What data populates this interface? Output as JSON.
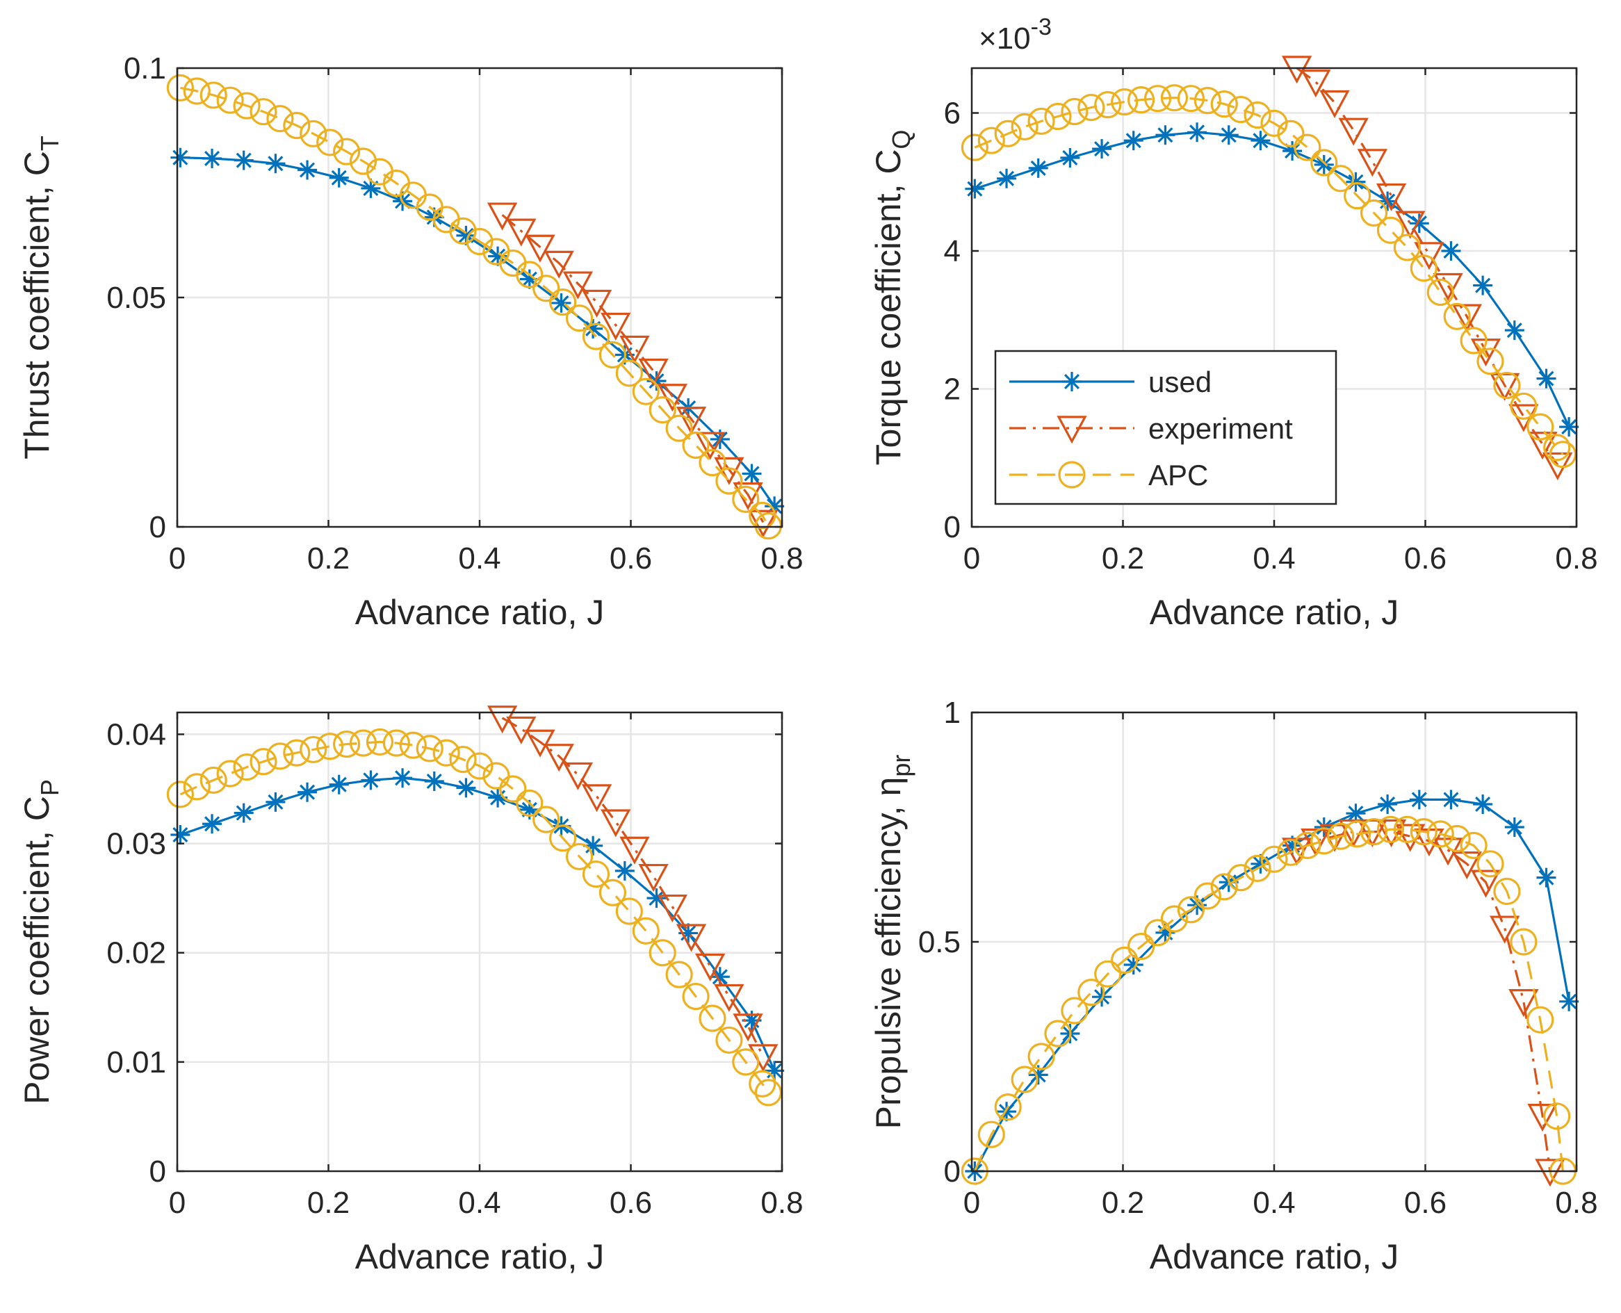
{
  "colors": {
    "used": "#0072BD",
    "experiment": "#D95319",
    "APC": "#EDB120",
    "grid": "#e6e6e6",
    "axis": "#262626"
  },
  "legend": [
    {
      "key": "used",
      "label": "used",
      "marker": "asterisk",
      "dash": "solid"
    },
    {
      "key": "experiment",
      "label": "experiment",
      "marker": "triangle-down",
      "dash": "dashdot"
    },
    {
      "key": "APC",
      "label": "APC",
      "marker": "circle",
      "dash": "dashed"
    }
  ],
  "chart_data": [
    {
      "type": "line",
      "id": "thrust",
      "xlabel": "Advance ratio, J",
      "ylabel": "Thrust coefficient, C",
      "ylabel_sub": "T",
      "xlim": [
        0,
        0.8
      ],
      "ylim": [
        0,
        0.1
      ],
      "xticks": [
        0,
        0.2,
        0.4,
        0.6,
        0.8
      ],
      "xtick_labels": [
        "0",
        "0.2",
        "0.4",
        "0.6",
        "0.8"
      ],
      "yticks": [
        0,
        0.05,
        0.1
      ],
      "ytick_labels": [
        "0",
        "0.05",
        "0.1"
      ],
      "grid": true,
      "series": [
        {
          "name": "used",
          "x": [
            0.004,
            0.046,
            0.088,
            0.13,
            0.172,
            0.214,
            0.256,
            0.298,
            0.34,
            0.382,
            0.424,
            0.466,
            0.508,
            0.55,
            0.592,
            0.634,
            0.676,
            0.718,
            0.76,
            0.79
          ],
          "y": [
            0.0805,
            0.0803,
            0.0799,
            0.0792,
            0.0778,
            0.0761,
            0.0738,
            0.071,
            0.0675,
            0.0635,
            0.059,
            0.054,
            0.0488,
            0.0432,
            0.0375,
            0.0318,
            0.0259,
            0.0191,
            0.0116,
            0.0045
          ]
        },
        {
          "name": "experiment",
          "x": [
            0.43,
            0.455,
            0.48,
            0.505,
            0.53,
            0.555,
            0.58,
            0.605,
            0.63,
            0.655,
            0.68,
            0.705,
            0.73,
            0.755,
            0.775
          ],
          "y": [
            0.068,
            0.0645,
            0.061,
            0.0575,
            0.053,
            0.049,
            0.044,
            0.039,
            0.034,
            0.0285,
            0.0235,
            0.018,
            0.0125,
            0.007,
            0.001
          ]
        },
        {
          "name": "APC",
          "x": [
            0.004,
            0.026,
            0.048,
            0.07,
            0.092,
            0.114,
            0.136,
            0.158,
            0.18,
            0.202,
            0.224,
            0.246,
            0.268,
            0.29,
            0.312,
            0.334,
            0.356,
            0.378,
            0.4,
            0.422,
            0.444,
            0.466,
            0.488,
            0.51,
            0.532,
            0.554,
            0.576,
            0.598,
            0.62,
            0.642,
            0.664,
            0.686,
            0.708,
            0.73,
            0.752,
            0.774,
            0.782
          ],
          "y": [
            0.0957,
            0.095,
            0.0941,
            0.093,
            0.0918,
            0.0905,
            0.089,
            0.0875,
            0.0857,
            0.0838,
            0.0818,
            0.0797,
            0.0774,
            0.0749,
            0.0723,
            0.0697,
            0.067,
            0.0645,
            0.0622,
            0.06,
            0.0575,
            0.055,
            0.052,
            0.049,
            0.0455,
            0.0415,
            0.0375,
            0.0335,
            0.0295,
            0.0255,
            0.0215,
            0.0178,
            0.014,
            0.01,
            0.006,
            0.0025,
            0.0002
          ]
        }
      ]
    },
    {
      "type": "line",
      "id": "torque",
      "xlabel": "Advance ratio, J",
      "ylabel": "Torque coefficient, C",
      "ylabel_sub": "Q",
      "exponent_base": "×10",
      "exponent_power": "-3",
      "xlim": [
        0,
        0.8
      ],
      "ylim": [
        0,
        6.65
      ],
      "xticks": [
        0,
        0.2,
        0.4,
        0.6,
        0.8
      ],
      "xtick_labels": [
        "0",
        "0.2",
        "0.4",
        "0.6",
        "0.8"
      ],
      "yticks": [
        0,
        2,
        4,
        6
      ],
      "ytick_labels": [
        "0",
        "2",
        "4",
        "6"
      ],
      "grid": true,
      "series": [
        {
          "name": "used",
          "x": [
            0.004,
            0.046,
            0.088,
            0.13,
            0.172,
            0.214,
            0.256,
            0.298,
            0.34,
            0.382,
            0.424,
            0.466,
            0.508,
            0.55,
            0.592,
            0.634,
            0.676,
            0.718,
            0.76,
            0.79
          ],
          "y": [
            4.9,
            5.05,
            5.2,
            5.35,
            5.48,
            5.6,
            5.68,
            5.72,
            5.68,
            5.6,
            5.45,
            5.25,
            5.0,
            4.72,
            4.4,
            4.0,
            3.5,
            2.85,
            2.15,
            1.45
          ]
        },
        {
          "name": "experiment",
          "x": [
            0.43,
            0.455,
            0.48,
            0.505,
            0.53,
            0.555,
            0.58,
            0.605,
            0.63,
            0.655,
            0.68,
            0.705,
            0.73,
            0.755,
            0.775
          ],
          "y": [
            6.65,
            6.45,
            6.15,
            5.75,
            5.3,
            4.8,
            4.4,
            3.95,
            3.5,
            3.05,
            2.55,
            2.05,
            1.6,
            1.2,
            0.9
          ]
        },
        {
          "name": "APC",
          "x": [
            0.004,
            0.026,
            0.048,
            0.07,
            0.092,
            0.114,
            0.136,
            0.158,
            0.18,
            0.202,
            0.224,
            0.246,
            0.268,
            0.29,
            0.312,
            0.334,
            0.356,
            0.378,
            0.4,
            0.422,
            0.444,
            0.466,
            0.488,
            0.51,
            0.532,
            0.554,
            0.576,
            0.598,
            0.62,
            0.642,
            0.664,
            0.686,
            0.708,
            0.73,
            0.752,
            0.774,
            0.782
          ],
          "y": [
            5.5,
            5.6,
            5.7,
            5.8,
            5.88,
            5.95,
            6.02,
            6.08,
            6.12,
            6.16,
            6.19,
            6.21,
            6.22,
            6.21,
            6.18,
            6.13,
            6.05,
            5.97,
            5.85,
            5.7,
            5.5,
            5.28,
            5.05,
            4.8,
            4.55,
            4.3,
            4.05,
            3.75,
            3.4,
            3.05,
            2.7,
            2.4,
            2.05,
            1.75,
            1.45,
            1.15,
            1.05
          ]
        }
      ]
    },
    {
      "type": "line",
      "id": "power",
      "xlabel": "Advance ratio, J",
      "ylabel": "Power coefficient, C",
      "ylabel_sub": "P",
      "xlim": [
        0,
        0.8
      ],
      "ylim": [
        0,
        0.042
      ],
      "xticks": [
        0,
        0.2,
        0.4,
        0.6,
        0.8
      ],
      "xtick_labels": [
        "0",
        "0.2",
        "0.4",
        "0.6",
        "0.8"
      ],
      "yticks": [
        0,
        0.01,
        0.02,
        0.03,
        0.04
      ],
      "ytick_labels": [
        "0",
        "0.01",
        "0.02",
        "0.03",
        "0.04"
      ],
      "grid": true,
      "series": [
        {
          "name": "used",
          "x": [
            0.004,
            0.046,
            0.088,
            0.13,
            0.172,
            0.214,
            0.256,
            0.298,
            0.34,
            0.382,
            0.424,
            0.466,
            0.508,
            0.55,
            0.592,
            0.634,
            0.676,
            0.718,
            0.76,
            0.79
          ],
          "y": [
            0.0308,
            0.0318,
            0.0328,
            0.0338,
            0.0347,
            0.0354,
            0.0358,
            0.036,
            0.0357,
            0.0351,
            0.0342,
            0.0331,
            0.0316,
            0.0298,
            0.0275,
            0.025,
            0.0218,
            0.0178,
            0.0138,
            0.0092
          ]
        },
        {
          "name": "experiment",
          "x": [
            0.43,
            0.455,
            0.48,
            0.505,
            0.53,
            0.555,
            0.58,
            0.605,
            0.63,
            0.655,
            0.68,
            0.705,
            0.73,
            0.755,
            0.775
          ],
          "y": [
            0.0415,
            0.0405,
            0.0393,
            0.038,
            0.0363,
            0.0343,
            0.032,
            0.0295,
            0.027,
            0.0242,
            0.0215,
            0.0188,
            0.016,
            0.0133,
            0.0105
          ]
        },
        {
          "name": "APC",
          "x": [
            0.004,
            0.026,
            0.048,
            0.07,
            0.092,
            0.114,
            0.136,
            0.158,
            0.18,
            0.202,
            0.224,
            0.246,
            0.268,
            0.29,
            0.312,
            0.334,
            0.356,
            0.378,
            0.4,
            0.422,
            0.444,
            0.466,
            0.488,
            0.51,
            0.532,
            0.554,
            0.576,
            0.598,
            0.62,
            0.642,
            0.664,
            0.686,
            0.708,
            0.73,
            0.752,
            0.774,
            0.782
          ],
          "y": [
            0.0345,
            0.0352,
            0.0358,
            0.0364,
            0.037,
            0.0375,
            0.038,
            0.0383,
            0.0386,
            0.0389,
            0.0391,
            0.0392,
            0.0393,
            0.0392,
            0.039,
            0.0387,
            0.0383,
            0.0377,
            0.0371,
            0.0362,
            0.035,
            0.0337,
            0.0322,
            0.0305,
            0.0288,
            0.0272,
            0.0255,
            0.0238,
            0.022,
            0.02,
            0.018,
            0.016,
            0.014,
            0.012,
            0.01,
            0.008,
            0.0072
          ]
        }
      ]
    },
    {
      "type": "line",
      "id": "efficiency",
      "xlabel": "Advance ratio, J",
      "ylabel": "Propulsive efficiency, η",
      "ylabel_sub": "pr",
      "xlim": [
        0,
        0.8
      ],
      "ylim": [
        0,
        1
      ],
      "xticks": [
        0,
        0.2,
        0.4,
        0.6,
        0.8
      ],
      "xtick_labels": [
        "0",
        "0.2",
        "0.4",
        "0.6",
        "0.8"
      ],
      "yticks": [
        0,
        0.5,
        1
      ],
      "ytick_labels": [
        "0",
        "0.5",
        "1"
      ],
      "grid": true,
      "series": [
        {
          "name": "used",
          "x": [
            0.004,
            0.046,
            0.088,
            0.13,
            0.172,
            0.214,
            0.256,
            0.298,
            0.34,
            0.382,
            0.424,
            0.466,
            0.508,
            0.55,
            0.592,
            0.634,
            0.676,
            0.718,
            0.76,
            0.79
          ],
          "y": [
            0.0,
            0.13,
            0.21,
            0.3,
            0.38,
            0.45,
            0.52,
            0.58,
            0.63,
            0.67,
            0.71,
            0.75,
            0.78,
            0.8,
            0.81,
            0.81,
            0.8,
            0.75,
            0.64,
            0.37
          ]
        },
        {
          "name": "experiment",
          "x": [
            0.43,
            0.455,
            0.48,
            0.505,
            0.53,
            0.555,
            0.58,
            0.605,
            0.63,
            0.655,
            0.68,
            0.705,
            0.73,
            0.755,
            0.765
          ],
          "y": [
            0.7,
            0.72,
            0.73,
            0.74,
            0.74,
            0.74,
            0.73,
            0.72,
            0.7,
            0.67,
            0.63,
            0.53,
            0.37,
            0.12,
            0.0
          ]
        },
        {
          "name": "APC",
          "x": [
            0.004,
            0.026,
            0.048,
            0.07,
            0.092,
            0.114,
            0.136,
            0.158,
            0.18,
            0.202,
            0.224,
            0.246,
            0.268,
            0.29,
            0.312,
            0.334,
            0.356,
            0.378,
            0.4,
            0.422,
            0.444,
            0.466,
            0.488,
            0.51,
            0.532,
            0.554,
            0.576,
            0.598,
            0.62,
            0.642,
            0.664,
            0.686,
            0.708,
            0.73,
            0.752,
            0.774,
            0.782
          ],
          "y": [
            0.0,
            0.08,
            0.14,
            0.2,
            0.25,
            0.3,
            0.35,
            0.39,
            0.43,
            0.46,
            0.49,
            0.52,
            0.55,
            0.57,
            0.6,
            0.62,
            0.64,
            0.66,
            0.68,
            0.695,
            0.71,
            0.72,
            0.73,
            0.735,
            0.74,
            0.745,
            0.745,
            0.74,
            0.735,
            0.725,
            0.71,
            0.67,
            0.61,
            0.5,
            0.33,
            0.12,
            0.0
          ]
        }
      ]
    }
  ]
}
